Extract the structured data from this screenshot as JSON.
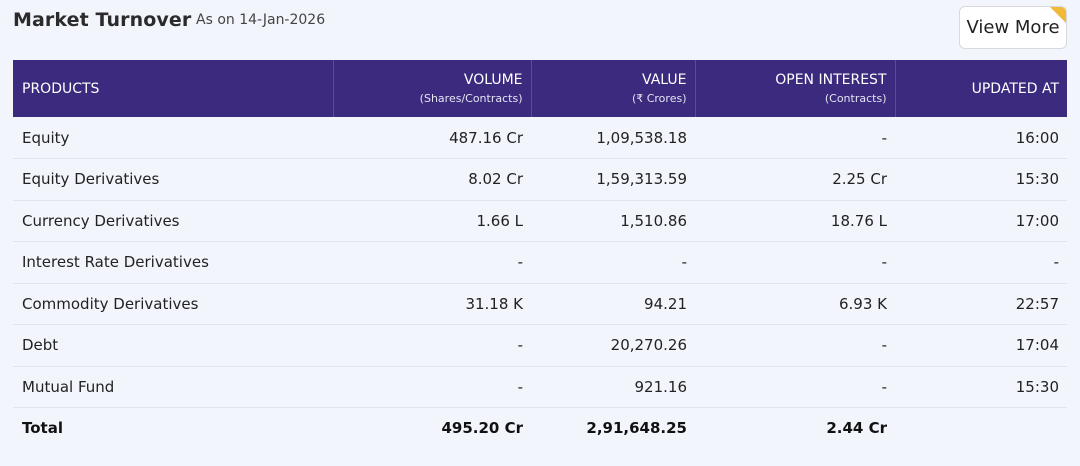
{
  "header": {
    "title": "Market Turnover",
    "as_on": "As on 14-Jan-2026",
    "view_more_label": "View More"
  },
  "table": {
    "columns": [
      {
        "label": "PRODUCTS",
        "sub": ""
      },
      {
        "label": "VOLUME",
        "sub": "(Shares/Contracts)"
      },
      {
        "label": "VALUE",
        "sub": "(₹ Crores)"
      },
      {
        "label": "OPEN INTEREST",
        "sub": "(Contracts)"
      },
      {
        "label": "UPDATED AT",
        "sub": ""
      }
    ],
    "rows": [
      [
        "Equity",
        "487.16 Cr",
        "1,09,538.18",
        "-",
        "16:00"
      ],
      [
        "Equity Derivatives",
        "8.02 Cr",
        "1,59,313.59",
        "2.25 Cr",
        "15:30"
      ],
      [
        "Currency Derivatives",
        "1.66 L",
        "1,510.86",
        "18.76 L",
        "17:00"
      ],
      [
        "Interest Rate Derivatives",
        "-",
        "-",
        "-",
        "-"
      ],
      [
        "Commodity Derivatives",
        "31.18 K",
        "94.21",
        "6.93 K",
        "22:57"
      ],
      [
        "Debt",
        "-",
        "20,270.26",
        "-",
        "17:04"
      ],
      [
        "Mutual Fund",
        "-",
        "921.16",
        "-",
        "15:30"
      ]
    ],
    "total": [
      "Total",
      "495.20 Cr",
      "2,91,648.25",
      "2.44 Cr",
      ""
    ]
  },
  "colors": {
    "header_bg": "#3c2a7e",
    "page_bg": "#f3f5fc",
    "accent_corner": "#f0b93a"
  }
}
